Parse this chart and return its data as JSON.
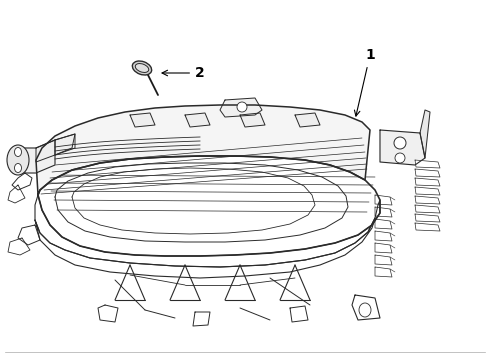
{
  "background_color": "#ffffff",
  "line_color": "#2a2a2a",
  "fig_width": 4.9,
  "fig_height": 3.6,
  "dpi": 100,
  "label1_text": "1",
  "label2_text": "2",
  "label_fontsize": 10,
  "border_color": "#cccccc"
}
